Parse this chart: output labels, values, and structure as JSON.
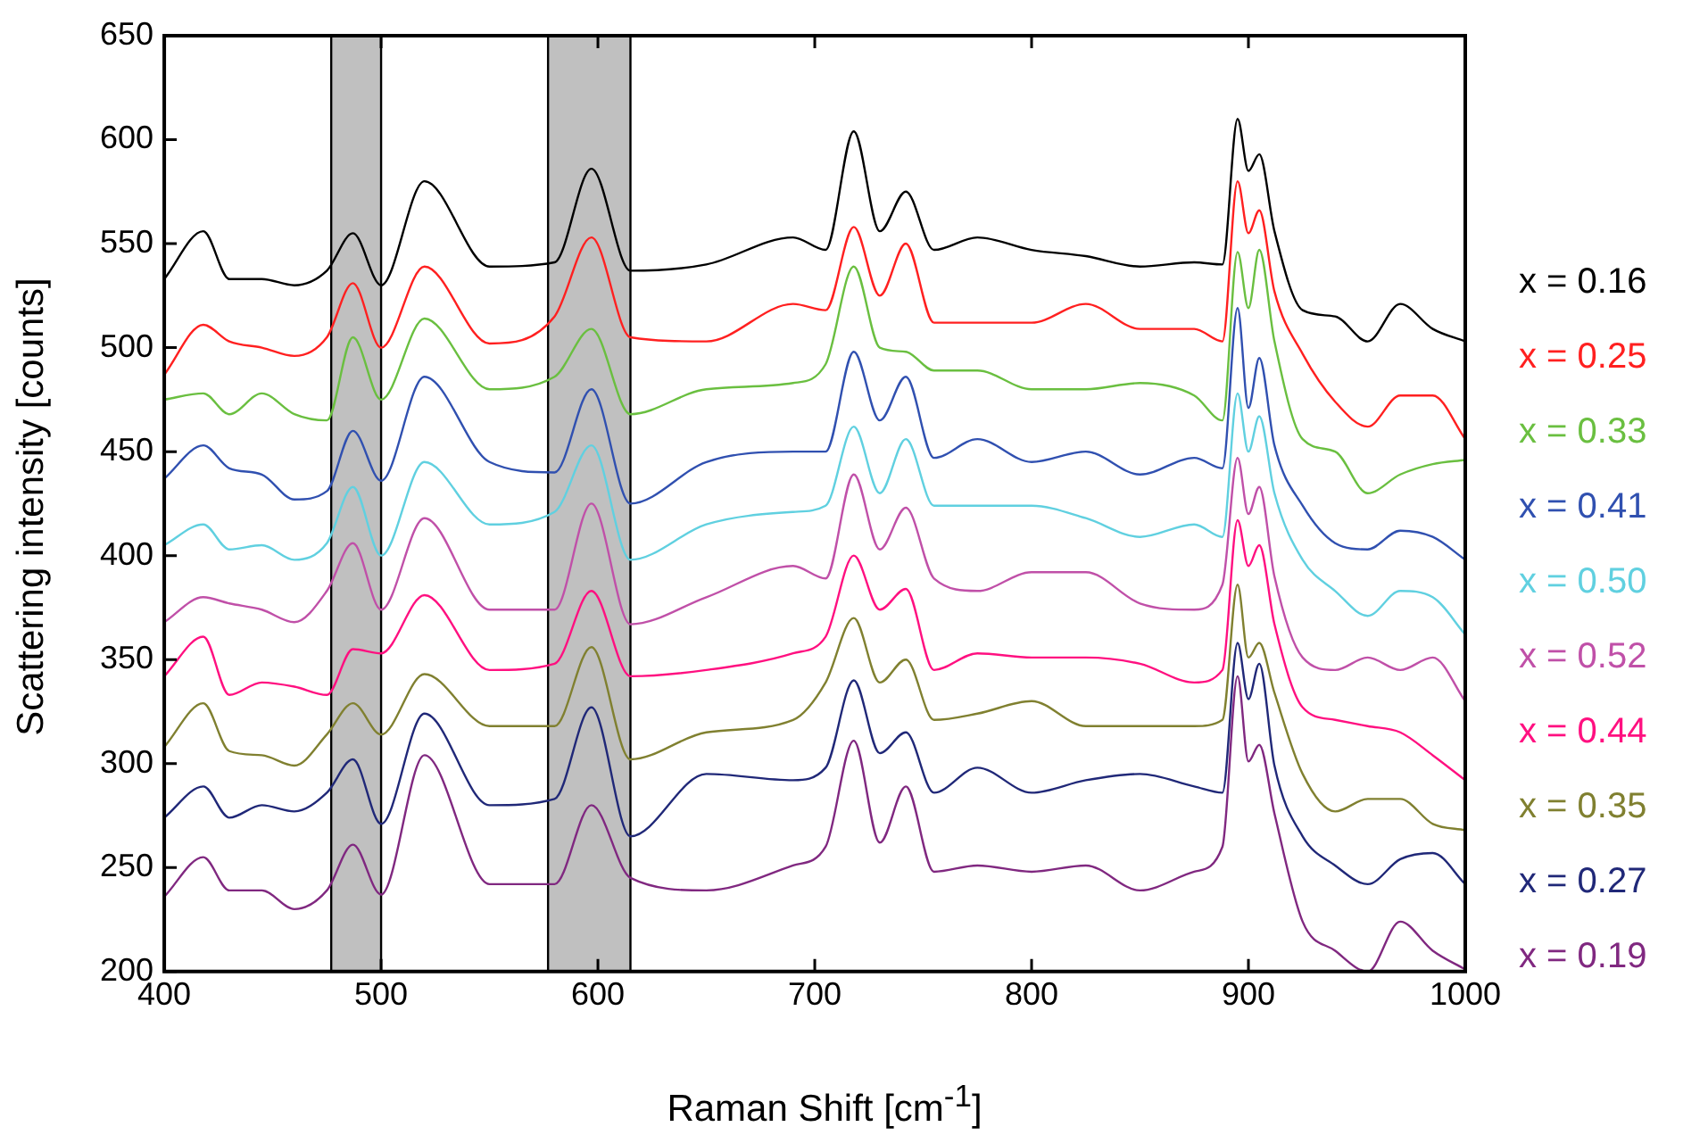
{
  "chart_data": {
    "type": "line",
    "xlabel": "Raman Shift [cm$^{-1}$]",
    "ylabel": "Scattering intensity [counts]",
    "x": [
      400,
      418,
      430,
      445,
      460,
      475,
      487,
      500,
      520,
      550,
      580,
      597,
      615,
      650,
      690,
      705,
      718,
      730,
      742,
      755,
      775,
      800,
      825,
      850,
      875,
      888,
      895,
      900,
      905,
      912,
      925,
      940,
      955,
      970,
      985,
      1000
    ],
    "xlim": [
      400,
      1000
    ],
    "xticks": [
      400,
      500,
      600,
      700,
      800,
      900,
      1000
    ],
    "ylim": [
      200,
      650
    ],
    "yticks": [
      200,
      250,
      300,
      350,
      400,
      450,
      500,
      550,
      600,
      650
    ],
    "grid": false,
    "legend": "right",
    "marker": "none",
    "line_style": "solid",
    "bands": [
      {
        "axis": "x",
        "from": 477,
        "to": 500,
        "color": "#c0c0c0"
      },
      {
        "axis": "x",
        "from": 577,
        "to": 615,
        "color": "#c0c0c0"
      }
    ],
    "series": [
      {
        "name": "x = 0.16",
        "color": "#000000",
        "values": [
          533,
          556,
          533,
          533,
          530,
          537,
          555,
          530,
          580,
          539,
          541,
          586,
          537,
          540,
          553,
          547,
          604,
          556,
          575,
          547,
          553,
          547,
          544,
          539,
          541,
          540,
          610,
          585,
          593,
          556,
          518,
          515,
          503,
          521,
          509,
          503
        ]
      },
      {
        "name": "x = 0.25",
        "color": "#ff2020",
        "values": [
          487,
          511,
          503,
          500,
          496,
          505,
          531,
          500,
          539,
          502,
          515,
          553,
          505,
          503,
          521,
          518,
          558,
          525,
          550,
          512,
          512,
          512,
          521,
          509,
          509,
          503,
          580,
          555,
          566,
          527,
          497,
          474,
          462,
          477,
          477,
          456
        ]
      },
      {
        "name": "x = 0.33",
        "color": "#6abf40",
        "values": [
          475,
          478,
          468,
          478,
          468,
          465,
          505,
          475,
          514,
          480,
          486,
          509,
          468,
          480,
          483,
          492,
          539,
          500,
          498,
          489,
          489,
          480,
          480,
          483,
          477,
          465,
          546,
          519,
          547,
          503,
          456,
          450,
          430,
          439,
          444,
          446
        ]
      },
      {
        "name": "x = 0.41",
        "color": "#3050b0",
        "values": [
          437,
          453,
          442,
          439,
          427,
          431,
          460,
          436,
          486,
          445,
          440,
          480,
          425,
          445,
          450,
          450,
          498,
          465,
          486,
          447,
          456,
          445,
          450,
          439,
          447,
          442,
          519,
          471,
          495,
          453,
          424,
          406,
          403,
          412,
          409,
          398
        ]
      },
      {
        "name": "x = 0.50",
        "color": "#60d0e0",
        "values": [
          405,
          415,
          403,
          405,
          398,
          406,
          433,
          400,
          445,
          415,
          421,
          453,
          398,
          415,
          421,
          424,
          462,
          430,
          456,
          424,
          424,
          424,
          418,
          409,
          415,
          409,
          478,
          450,
          467,
          430,
          398,
          383,
          371,
          383,
          380,
          362
        ]
      },
      {
        "name": "x = 0.52",
        "color": "#c050a8",
        "values": [
          368,
          380,
          377,
          374,
          368,
          383,
          406,
          374,
          418,
          374,
          374,
          425,
          367,
          380,
          395,
          389,
          439,
          403,
          423,
          389,
          383,
          392,
          392,
          377,
          374,
          386,
          447,
          420,
          433,
          390,
          351,
          345,
          351,
          345,
          351,
          330
        ]
      },
      {
        "name": "x = 0.44",
        "color": "#ff1080",
        "values": [
          342,
          361,
          333,
          339,
          337,
          333,
          355,
          353,
          381,
          345,
          348,
          383,
          342,
          345,
          353,
          361,
          400,
          374,
          384,
          345,
          353,
          351,
          351,
          348,
          339,
          345,
          417,
          395,
          405,
          367,
          327,
          321,
          318,
          315,
          304,
          292
        ]
      },
      {
        "name": "x = 0.35",
        "color": "#808030",
        "values": [
          308,
          329,
          306,
          304,
          299,
          314,
          329,
          314,
          343,
          318,
          318,
          356,
          302,
          315,
          321,
          339,
          370,
          339,
          350,
          321,
          324,
          330,
          318,
          318,
          318,
          321,
          386,
          351,
          358,
          334,
          295,
          277,
          283,
          283,
          271,
          268
        ]
      },
      {
        "name": "x = 0.27",
        "color": "#202878",
        "values": [
          274,
          289,
          274,
          280,
          277,
          286,
          302,
          271,
          324,
          280,
          283,
          327,
          265,
          295,
          292,
          298,
          340,
          305,
          315,
          286,
          298,
          286,
          292,
          295,
          289,
          286,
          358,
          331,
          348,
          299,
          265,
          251,
          242,
          254,
          257,
          242
        ]
      },
      {
        "name": "x = 0.19",
        "color": "#802880",
        "values": [
          236,
          255,
          239,
          239,
          230,
          239,
          261,
          237,
          304,
          242,
          242,
          280,
          245,
          239,
          251,
          260,
          311,
          262,
          289,
          248,
          251,
          248,
          251,
          239,
          248,
          260,
          342,
          301,
          309,
          276,
          224,
          210,
          200,
          224,
          210,
          201
        ]
      }
    ]
  }
}
